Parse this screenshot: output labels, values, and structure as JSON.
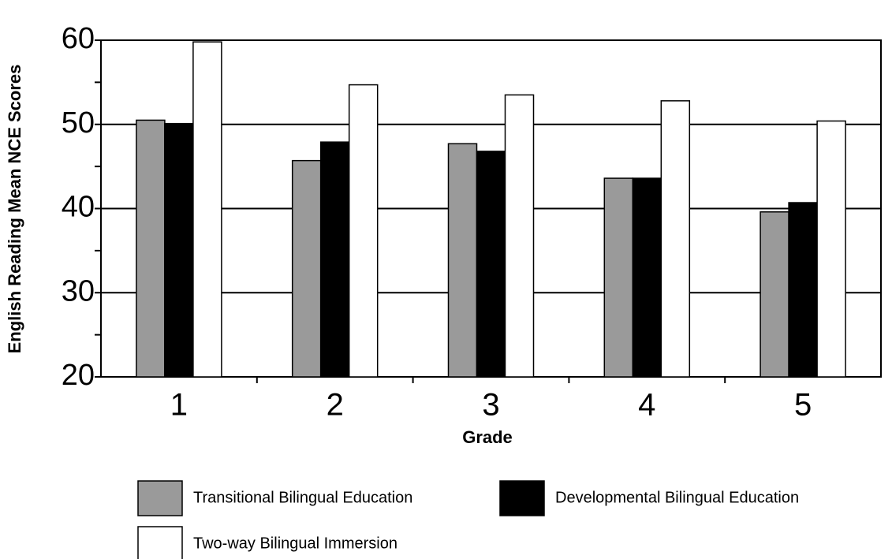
{
  "chart_data": {
    "type": "bar",
    "x_label": "Grade",
    "y_label": "English Reading Mean NCE Scores",
    "categories": [
      "1",
      "2",
      "3",
      "4",
      "5"
    ],
    "series": [
      {
        "name": "Transitional Bilingual Education",
        "color": "#9a9a9a",
        "values": [
          50.5,
          45.7,
          47.7,
          43.6,
          39.6
        ]
      },
      {
        "name": "Developmental Bilingual Education",
        "color": "#000000",
        "values": [
          50.1,
          47.9,
          46.8,
          43.6,
          40.7
        ]
      },
      {
        "name": "Two-way Bilingual Immersion",
        "color": "#ffffff",
        "values": [
          59.8,
          54.7,
          53.5,
          52.8,
          50.4
        ]
      }
    ],
    "ylim": [
      20,
      60
    ],
    "yticks": [
      20,
      30,
      40,
      50,
      60
    ],
    "yminor_ticks": [
      25,
      35,
      45,
      55
    ],
    "grid": true
  }
}
